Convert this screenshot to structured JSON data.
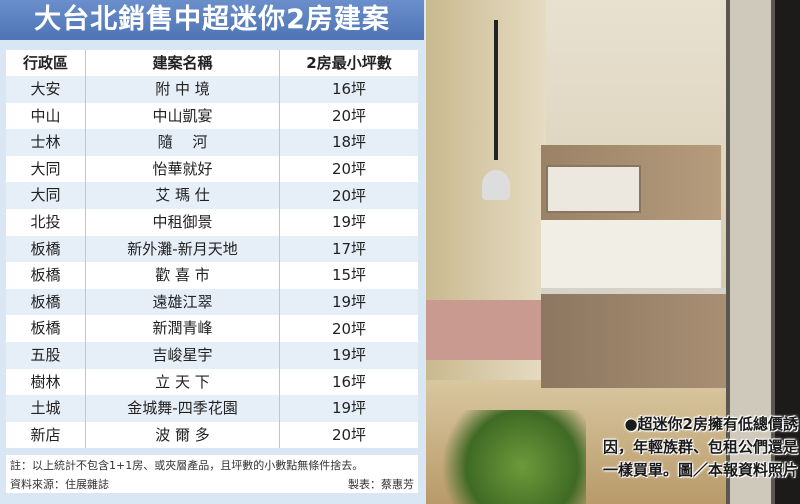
{
  "title": "大台北銷售中超迷你2房建案",
  "table": {
    "headers": [
      "行政區",
      "建案名稱",
      "2房最小坪數"
    ],
    "rows": [
      [
        "大安",
        "附 中 境",
        "16坪"
      ],
      [
        "中山",
        "中山凱宴",
        "20坪"
      ],
      [
        "士林",
        "隨　 河",
        "18坪"
      ],
      [
        "大同",
        "怡華就好",
        "20坪"
      ],
      [
        "大同",
        "艾 瑪 仕",
        "20坪"
      ],
      [
        "北投",
        "中租御景",
        "19坪"
      ],
      [
        "板橋",
        "新外灘-新月天地",
        "17坪"
      ],
      [
        "板橋",
        "歡 喜 市",
        "15坪"
      ],
      [
        "板橋",
        "遠雄江翠",
        "19坪"
      ],
      [
        "板橋",
        "新潤青峰",
        "20坪"
      ],
      [
        "五股",
        "吉峻星宇",
        "19坪"
      ],
      [
        "樹林",
        "立 天 下",
        "16坪"
      ],
      [
        "土城",
        "金城舞-四季花園",
        "19坪"
      ],
      [
        "新店",
        "波 爾 多",
        "20坪"
      ]
    ]
  },
  "notes": {
    "note": "註：以上統計不包含1+1房、或夾層產品，且坪數的小數點無條件捨去。",
    "source": "資料來源：住展雜誌",
    "maker": "製表：蔡惠芳"
  },
  "photo": {
    "caption_lines": [
      "●超迷你2房擁有低總價誘",
      "因，年輕族群、包租公們還是",
      "一樣買單。圖／本報資料照片"
    ]
  },
  "colors": {
    "title_bar": "#5a7fc0",
    "stripe": "#e6eef8",
    "background": "#d9e7f5"
  }
}
